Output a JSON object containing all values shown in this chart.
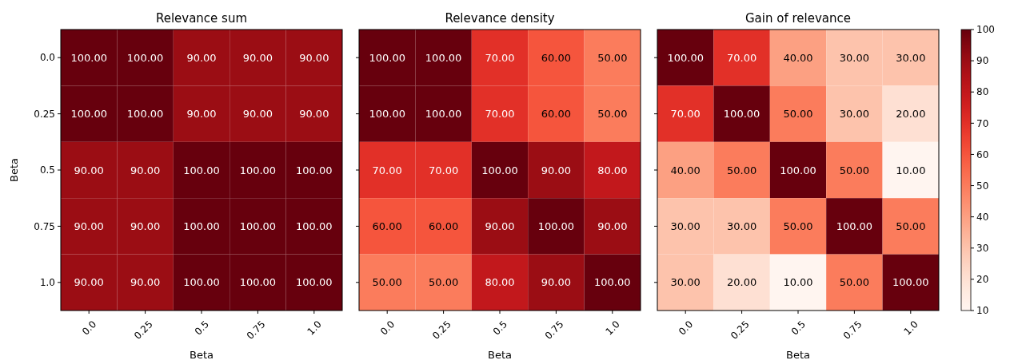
{
  "chart_data": [
    {
      "type": "heatmap",
      "title": "Relevance sum",
      "xlabel": "Beta",
      "ylabel": "Beta",
      "categories": [
        "0.0",
        "0.25",
        "0.5",
        "0.75",
        "1.0"
      ],
      "y_categories": [
        "0.0",
        "0.25",
        "0.5",
        "0.75",
        "1.0"
      ],
      "cells": [
        [
          100,
          100,
          90,
          90,
          90
        ],
        [
          100,
          100,
          90,
          90,
          90
        ],
        [
          90,
          90,
          100,
          100,
          100
        ],
        [
          90,
          90,
          100,
          100,
          100
        ],
        [
          90,
          90,
          100,
          100,
          100
        ]
      ],
      "cell_labels": [
        [
          "100.00",
          "100.00",
          "90.00",
          "90.00",
          "90.00"
        ],
        [
          "100.00",
          "100.00",
          "90.00",
          "90.00",
          "90.00"
        ],
        [
          "90.00",
          "90.00",
          "100.00",
          "100.00",
          "100.00"
        ],
        [
          "90.00",
          "90.00",
          "100.00",
          "100.00",
          "100.00"
        ],
        [
          "90.00",
          "90.00",
          "100.00",
          "100.00",
          "100.00"
        ]
      ]
    },
    {
      "type": "heatmap",
      "title": "Relevance density",
      "xlabel": "Beta",
      "categories": [
        "0.0",
        "0.25",
        "0.5",
        "0.75",
        "1.0"
      ],
      "y_categories": [
        "0.0",
        "0.25",
        "0.5",
        "0.75",
        "1.0"
      ],
      "tick_labels": "x",
      "cells": [
        [
          100,
          100,
          70,
          60,
          50
        ],
        [
          100,
          100,
          70,
          60,
          50
        ],
        [
          70,
          70,
          100,
          90,
          80
        ],
        [
          60,
          60,
          90,
          100,
          90
        ],
        [
          50,
          50,
          80,
          90,
          100
        ]
      ],
      "cell_labels": [
        [
          "100.00",
          "100.00",
          "70.00",
          "60.00",
          "50.00"
        ],
        [
          "100.00",
          "100.00",
          "70.00",
          "60.00",
          "50.00"
        ],
        [
          "70.00",
          "70.00",
          "100.00",
          "90.00",
          "80.00"
        ],
        [
          "60.00",
          "60.00",
          "90.00",
          "100.00",
          "90.00"
        ],
        [
          "50.00",
          "50.00",
          "80.00",
          "90.00",
          "100.00"
        ]
      ]
    },
    {
      "type": "heatmap",
      "title": "Gain of relevance",
      "xlabel": "Beta",
      "categories": [
        "0.0",
        "0.25",
        "0.5",
        "0.75",
        "1.0"
      ],
      "y_categories": [
        "0.0",
        "0.25",
        "0.5",
        "0.75",
        "1.0"
      ],
      "tick_labels": "x",
      "cells": [
        [
          100,
          70,
          40,
          30,
          30
        ],
        [
          70,
          100,
          50,
          30,
          20
        ],
        [
          40,
          50,
          100,
          50,
          10
        ],
        [
          30,
          30,
          50,
          100,
          50
        ],
        [
          30,
          20,
          10,
          50,
          100
        ]
      ],
      "cell_labels": [
        [
          "100.00",
          "70.00",
          "40.00",
          "30.00",
          "30.00"
        ],
        [
          "70.00",
          "100.00",
          "50.00",
          "30.00",
          "20.00"
        ],
        [
          "40.00",
          "50.00",
          "100.00",
          "50.00",
          "10.00"
        ],
        [
          "30.00",
          "30.00",
          "50.00",
          "100.00",
          "50.00"
        ],
        [
          "30.00",
          "20.00",
          "10.00",
          "50.00",
          "100.00"
        ]
      ],
      "clim": [
        10,
        100
      ],
      "cticks": [
        10,
        20,
        30,
        40,
        50,
        60,
        70,
        80,
        90,
        100
      ]
    }
  ]
}
